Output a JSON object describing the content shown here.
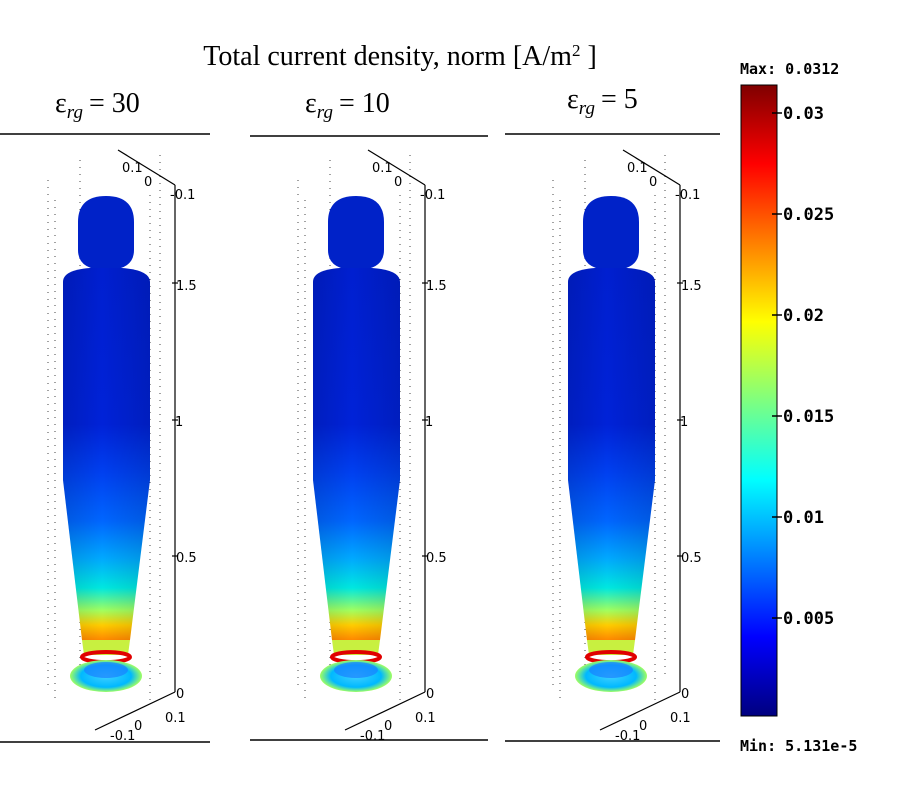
{
  "figure": {
    "title_main": "Total current density, norm [A/m",
    "title_sup": "2",
    "title_end": " ]",
    "symbol": "ε",
    "subscript": "rg",
    "panels": [
      {
        "value_label": "= 30"
      },
      {
        "value_label": "= 10"
      },
      {
        "value_label": "= 5"
      }
    ],
    "axis_ticks": {
      "z": [
        "1.5",
        "1",
        "0.5",
        "0",
        "-0.1"
      ],
      "x_bottom": [
        "0.1",
        "0",
        "-0.1"
      ],
      "y_top": [
        "0.1",
        "0"
      ]
    }
  },
  "colorbar": {
    "max_label": "Max: 0.0312",
    "min_label": "Min: 5.131e-5",
    "ticks": [
      "0.03",
      "0.025",
      "0.02",
      "0.015",
      "0.01",
      "0.005"
    ],
    "colormap": "jet",
    "colors": [
      "#00007f",
      "#0000ff",
      "#007fff",
      "#00ffff",
      "#7fff7f",
      "#ffff00",
      "#ff7f00",
      "#ff0000",
      "#7f0000"
    ]
  },
  "chart_data": {
    "type": "heatmap",
    "title": "Total current density, norm [A/m2 ]",
    "panels": [
      "ε rg = 30",
      "ε rg = 10",
      "ε rg = 5"
    ],
    "colorbar_range": [
      5.131e-05,
      0.0312
    ],
    "colorbar_ticks": [
      0.005,
      0.01,
      0.015,
      0.02,
      0.025,
      0.03
    ],
    "z_axis_ticks": [
      0,
      0.5,
      1,
      1.5
    ]
  }
}
